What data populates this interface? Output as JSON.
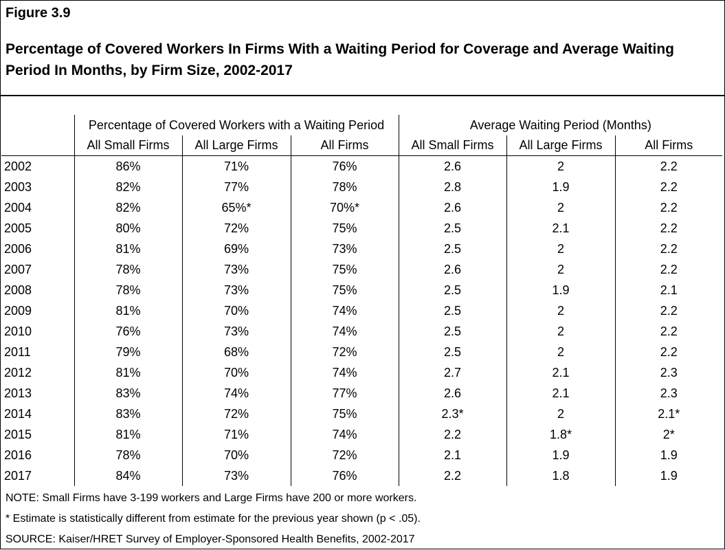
{
  "figure_label": "Figure 3.9",
  "title": "Percentage of Covered Workers In Firms With a Waiting Period for Coverage and Average Waiting Period In Months, by Firm Size, 2002-2017",
  "chart_data": {
    "type": "table",
    "group_headers": [
      "Percentage of Covered Workers with a Waiting Period",
      "Average Waiting Period (Months)"
    ],
    "columns": [
      "All Small Firms",
      "All Large Firms",
      "All Firms",
      "All Small Firms",
      "All Large Firms",
      "All Firms"
    ],
    "rows": [
      {
        "year": "2002",
        "values": [
          "86%",
          "71%",
          "76%",
          "2.6",
          "2",
          "2.2"
        ]
      },
      {
        "year": "2003",
        "values": [
          "82%",
          "77%",
          "78%",
          "2.8",
          "1.9",
          "2.2"
        ]
      },
      {
        "year": "2004",
        "values": [
          "82%",
          "65%*",
          "70%*",
          "2.6",
          "2",
          "2.2"
        ]
      },
      {
        "year": "2005",
        "values": [
          "80%",
          "72%",
          "75%",
          "2.5",
          "2.1",
          "2.2"
        ]
      },
      {
        "year": "2006",
        "values": [
          "81%",
          "69%",
          "73%",
          "2.5",
          "2",
          "2.2"
        ]
      },
      {
        "year": "2007",
        "values": [
          "78%",
          "73%",
          "75%",
          "2.6",
          "2",
          "2.2"
        ]
      },
      {
        "year": "2008",
        "values": [
          "78%",
          "73%",
          "75%",
          "2.5",
          "1.9",
          "2.1"
        ]
      },
      {
        "year": "2009",
        "values": [
          "81%",
          "70%",
          "74%",
          "2.5",
          "2",
          "2.2"
        ]
      },
      {
        "year": "2010",
        "values": [
          "76%",
          "73%",
          "74%",
          "2.5",
          "2",
          "2.2"
        ]
      },
      {
        "year": "2011",
        "values": [
          "79%",
          "68%",
          "72%",
          "2.5",
          "2",
          "2.2"
        ]
      },
      {
        "year": "2012",
        "values": [
          "81%",
          "70%",
          "74%",
          "2.7",
          "2.1",
          "2.3"
        ]
      },
      {
        "year": "2013",
        "values": [
          "83%",
          "74%",
          "77%",
          "2.6",
          "2.1",
          "2.3"
        ]
      },
      {
        "year": "2014",
        "values": [
          "83%",
          "72%",
          "75%",
          "2.3*",
          "2",
          "2.1*"
        ]
      },
      {
        "year": "2015",
        "values": [
          "81%",
          "71%",
          "74%",
          "2.2",
          "1.8*",
          "2*"
        ]
      },
      {
        "year": "2016",
        "values": [
          "78%",
          "70%",
          "72%",
          "2.1",
          "1.9",
          "1.9"
        ]
      },
      {
        "year": "2017",
        "values": [
          "84%",
          "73%",
          "76%",
          "2.2",
          "1.8",
          "1.9"
        ]
      }
    ]
  },
  "notes": [
    "NOTE: Small Firms have 3-199 workers and Large Firms have 200 or more workers.",
    "* Estimate is statistically different from estimate for the previous year shown (p < .05).",
    "SOURCE: Kaiser/HRET Survey of Employer-Sponsored Health Benefits, 2002-2017"
  ]
}
